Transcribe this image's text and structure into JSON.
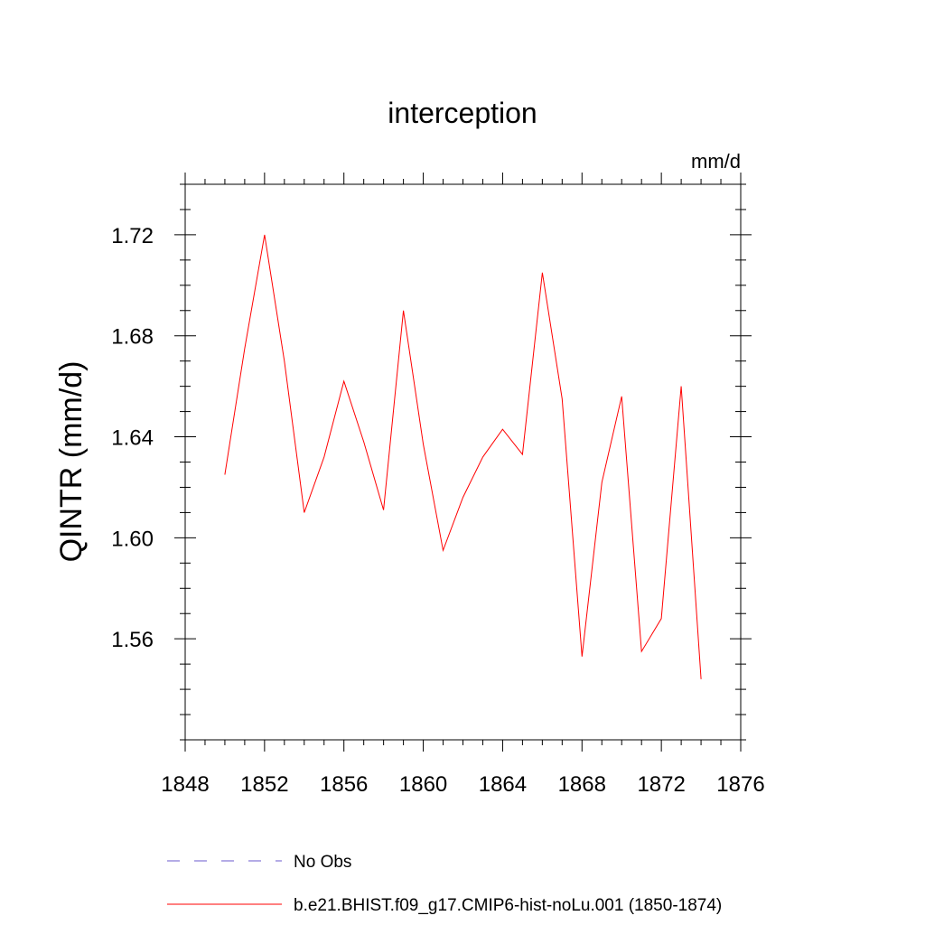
{
  "chart_data": {
    "type": "line",
    "title": "interception",
    "units_label": "mm/d",
    "ylabel": "QINTR  (mm/d)",
    "xlabel": "",
    "xlim": [
      1848,
      1876
    ],
    "ylim": [
      1.52,
      1.74
    ],
    "x_ticks": [
      1848,
      1852,
      1856,
      1860,
      1864,
      1868,
      1872,
      1876
    ],
    "y_ticks": [
      1.56,
      1.6,
      1.64,
      1.68,
      1.72
    ],
    "y_tick_labels": [
      "1.56",
      "1.60",
      "1.64",
      "1.68",
      "1.72"
    ],
    "grid": false,
    "legend_position": "bottom",
    "series": [
      {
        "name": "b.e21.BHIST.f09_g17.CMIP6-hist-noLu.001 (1850-1874)",
        "color": "#ff0000",
        "style": "solid",
        "x": [
          1850,
          1851,
          1852,
          1853,
          1854,
          1855,
          1856,
          1857,
          1858,
          1859,
          1860,
          1861,
          1862,
          1863,
          1864,
          1865,
          1866,
          1867,
          1868,
          1869,
          1870,
          1871,
          1872,
          1873,
          1874
        ],
        "y": [
          1.625,
          1.675,
          1.72,
          1.67,
          1.61,
          1.632,
          1.662,
          1.638,
          1.611,
          1.69,
          1.637,
          1.595,
          1.616,
          1.632,
          1.643,
          1.633,
          1.705,
          1.655,
          1.553,
          1.622,
          1.656,
          1.555,
          1.568,
          1.66,
          1.544
        ]
      }
    ],
    "legend": [
      {
        "label": "No Obs",
        "color": "#6a5acd",
        "style": "dashed"
      },
      {
        "label": "b.e21.BHIST.f09_g17.CMIP6-hist-noLu.001 (1850-1874)",
        "color": "#ff0000",
        "style": "solid"
      }
    ]
  }
}
